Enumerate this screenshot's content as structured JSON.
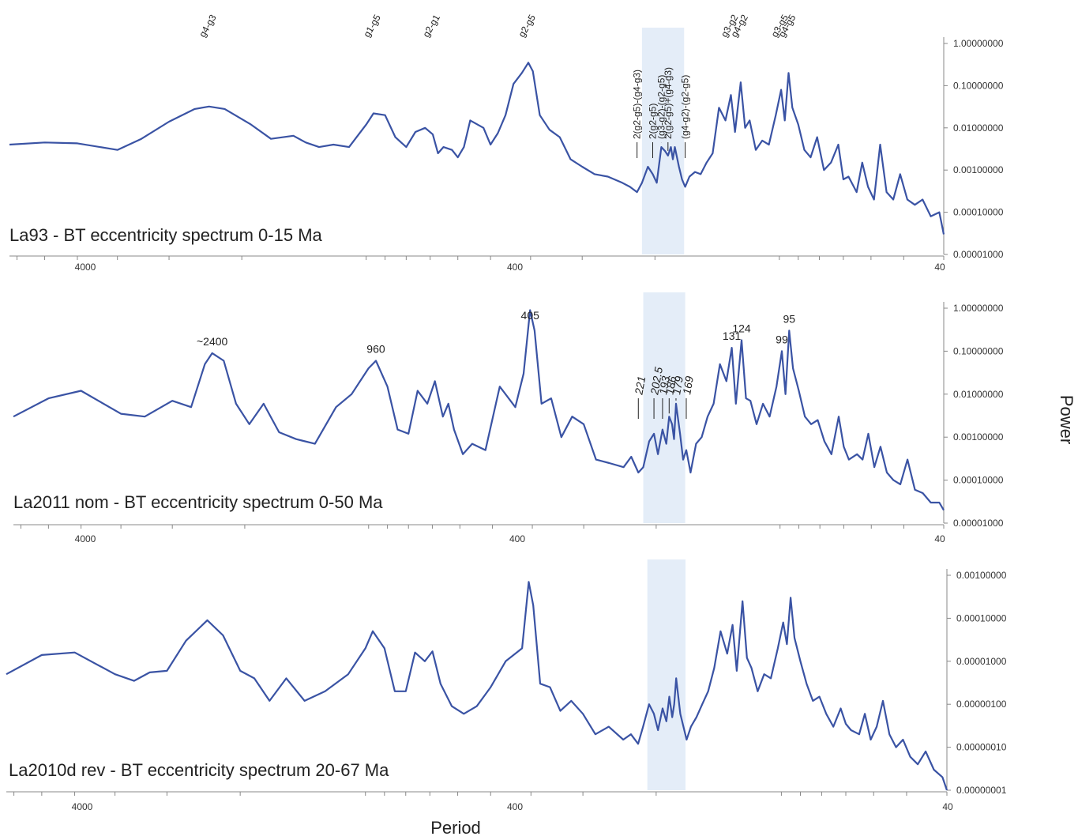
{
  "chart_data": [
    {
      "type": "line",
      "title": "La93 - BT eccentricity spectrum 0-15 Ma",
      "xlabel": "",
      "ylabel": "",
      "x_scale": "log-reversed",
      "xlim": [
        7300,
        40
      ],
      "x_ticks": [
        "4000",
        "400",
        "40"
      ],
      "y_scale": "log",
      "ylim": [
        1e-05,
        1.0
      ],
      "y_ticks": [
        "1.00000000",
        "0.10000000",
        "0.01000000",
        "0.00100000",
        "0.00010000",
        "0.00001000"
      ],
      "highlight_band": [
        215,
        170
      ],
      "grid": false,
      "series": [
        {
          "color": "#3a53a4",
          "x": [
            7300,
            6000,
            5000,
            4000,
            3500,
            3000,
            2600,
            2400,
            2200,
            1900,
            1700,
            1500,
            1400,
            1300,
            1200,
            1100,
            1000,
            960,
            900,
            850,
            800,
            760,
            720,
            690,
            670,
            650,
            620,
            600,
            580,
            560,
            520,
            500,
            480,
            460,
            440,
            420,
            405,
            395,
            380,
            360,
            340,
            320,
            300,
            280,
            260,
            240,
            230,
            221,
            215,
            208,
            202.5,
            198,
            193,
            189,
            186,
            183,
            181,
            179,
            175,
            172,
            169,
            165,
            160,
            155,
            150,
            145,
            140,
            135,
            131,
            128,
            124,
            121,
            118,
            114,
            110,
            106,
            102,
            99,
            97,
            95,
            93,
            90,
            87,
            84,
            81,
            78,
            75,
            72,
            70,
            68,
            65,
            63,
            61,
            59,
            57,
            55,
            53,
            51,
            49,
            47,
            45,
            43,
            41,
            40
          ],
          "y": [
            0.004,
            0.0045,
            0.0043,
            0.003,
            0.0055,
            0.014,
            0.028,
            0.032,
            0.028,
            0.012,
            0.0055,
            0.0065,
            0.0045,
            0.0035,
            0.004,
            0.0035,
            0.012,
            0.022,
            0.02,
            0.006,
            0.0035,
            0.008,
            0.01,
            0.007,
            0.0025,
            0.0035,
            0.003,
            0.002,
            0.0035,
            0.015,
            0.01,
            0.004,
            0.0075,
            0.02,
            0.11,
            0.2,
            0.35,
            0.22,
            0.02,
            0.009,
            0.006,
            0.0018,
            0.0012,
            0.0008,
            0.0007,
            0.0005,
            0.0004,
            0.0003,
            0.0005,
            0.0012,
            0.0008,
            0.0005,
            0.0035,
            0.0028,
            0.0022,
            0.0035,
            0.0018,
            0.0035,
            0.0012,
            0.0006,
            0.0004,
            0.0007,
            0.0009,
            0.0008,
            0.0015,
            0.0025,
            0.03,
            0.015,
            0.06,
            0.008,
            0.12,
            0.01,
            0.015,
            0.003,
            0.005,
            0.004,
            0.02,
            0.08,
            0.015,
            0.2,
            0.03,
            0.012,
            0.003,
            0.002,
            0.006,
            0.001,
            0.0015,
            0.004,
            0.0006,
            0.0007,
            0.0003,
            0.0015,
            0.0004,
            0.0002,
            0.004,
            0.0003,
            0.0002,
            0.0008,
            0.0002,
            0.00015,
            0.0002,
            8e-05,
            0.0001,
            3e-05
          ]
        }
      ],
      "annotations": [
        {
          "text": "2(g2-g5)-(g4-g3)",
          "x": 221
        },
        {
          "text": "2(g2-g5)",
          "x": 202.5
        },
        {
          "text": "(g3-g2)-(g2-g5)",
          "x": 193
        },
        {
          "text": "2(g2-g5)+(g4-g3)",
          "x": 186
        },
        {
          "text": "(g4-g2)-(g2-g5)",
          "x": 169
        }
      ],
      "top_labels": [
        {
          "text": "g4-g3",
          "x": 2400
        },
        {
          "text": "g1-g5",
          "x": 960
        },
        {
          "text": "g2-g1",
          "x": 690
        },
        {
          "text": "g2-g5",
          "x": 405
        },
        {
          "text": "g3-g2",
          "x": 131
        },
        {
          "text": "g4-g2",
          "x": 124
        },
        {
          "text": "g3-g5",
          "x": 99
        },
        {
          "text": "g4-g5",
          "x": 95
        }
      ]
    },
    {
      "type": "line",
      "title": "La2011 nom - BT eccentricity spectrum 0-50 Ma",
      "xlabel": "",
      "ylabel": "",
      "x_scale": "log-reversed",
      "xlim": [
        7300,
        40
      ],
      "x_ticks": [
        "4000",
        "400",
        "40"
      ],
      "y_scale": "log",
      "ylim": [
        1e-05,
        1.0
      ],
      "y_ticks": [
        "1.00000000",
        "0.10000000",
        "0.01000000",
        "0.00100000",
        "0.00010000",
        "0.00001000"
      ],
      "highlight_band": [
        215,
        170
      ],
      "grid": false,
      "series": [
        {
          "color": "#3a53a4",
          "x": [
            7300,
            6000,
            5000,
            4000,
            3500,
            3000,
            2700,
            2500,
            2400,
            2250,
            2100,
            1950,
            1800,
            1650,
            1500,
            1350,
            1200,
            1100,
            1000,
            960,
            900,
            850,
            800,
            760,
            720,
            690,
            660,
            640,
            620,
            590,
            560,
            520,
            480,
            440,
            420,
            405,
            395,
            380,
            360,
            340,
            320,
            300,
            280,
            260,
            240,
            230,
            221,
            215,
            208,
            202.5,
            198,
            193,
            189,
            186,
            183,
            181,
            179,
            175,
            172,
            169,
            165,
            160,
            155,
            150,
            145,
            140,
            135,
            131,
            128,
            124,
            121,
            118,
            114,
            110,
            106,
            102,
            99,
            97,
            95,
            93,
            90,
            87,
            84,
            81,
            78,
            75,
            72,
            70,
            68,
            65,
            63,
            61,
            59,
            57,
            55,
            53,
            51,
            49,
            47,
            45,
            43,
            41,
            40
          ],
          "y": [
            0.003,
            0.008,
            0.012,
            0.0035,
            0.003,
            0.007,
            0.005,
            0.05,
            0.09,
            0.06,
            0.006,
            0.002,
            0.006,
            0.0013,
            0.0009,
            0.0007,
            0.005,
            0.01,
            0.04,
            0.06,
            0.015,
            0.0015,
            0.0012,
            0.012,
            0.006,
            0.02,
            0.003,
            0.006,
            0.0015,
            0.0004,
            0.0007,
            0.0005,
            0.015,
            0.005,
            0.03,
            0.9,
            0.3,
            0.006,
            0.008,
            0.001,
            0.003,
            0.002,
            0.0003,
            0.00025,
            0.0002,
            0.00035,
            0.00015,
            0.0002,
            0.0008,
            0.0012,
            0.0004,
            0.0015,
            0.0007,
            0.003,
            0.002,
            0.0009,
            0.006,
            0.0012,
            0.0003,
            0.0005,
            0.00015,
            0.0007,
            0.001,
            0.003,
            0.006,
            0.05,
            0.02,
            0.12,
            0.006,
            0.18,
            0.008,
            0.007,
            0.002,
            0.006,
            0.003,
            0.015,
            0.1,
            0.01,
            0.3,
            0.04,
            0.012,
            0.003,
            0.002,
            0.0025,
            0.0008,
            0.0004,
            0.003,
            0.0006,
            0.0003,
            0.0004,
            0.0003,
            0.0012,
            0.0002,
            0.0006,
            0.00015,
            0.0001,
            8e-05,
            0.0003,
            6e-05,
            5e-05,
            3e-05,
            3e-05,
            2e-05
          ]
        }
      ],
      "peak_labels": [
        {
          "text": "~2400",
          "x": 2400,
          "italic": false
        },
        {
          "text": "960",
          "x": 960,
          "italic": false
        },
        {
          "text": "405",
          "x": 405,
          "italic": false
        },
        {
          "text": "221",
          "x": 221,
          "italic": true
        },
        {
          "text": "202.5",
          "x": 202.5,
          "italic": true
        },
        {
          "text": "193",
          "x": 193,
          "italic": true
        },
        {
          "text": "186",
          "x": 186,
          "italic": true
        },
        {
          "text": "179",
          "x": 179,
          "italic": true
        },
        {
          "text": "169",
          "x": 169,
          "italic": true
        },
        {
          "text": "131",
          "x": 131,
          "italic": false
        },
        {
          "text": "124",
          "x": 124,
          "italic": false
        },
        {
          "text": "99",
          "x": 99,
          "italic": false
        },
        {
          "text": "95",
          "x": 95,
          "italic": false
        }
      ]
    },
    {
      "type": "line",
      "title": "La2010d rev - BT eccentricity spectrum 20-67 Ma",
      "xlabel": "Period",
      "ylabel": "Power",
      "x_scale": "log-reversed",
      "xlim": [
        7300,
        40
      ],
      "x_ticks": [
        "4000",
        "400",
        "40"
      ],
      "y_scale": "log",
      "ylim": [
        1e-08,
        0.001
      ],
      "y_ticks": [
        "0.00100000",
        "0.00010000",
        "0.00001000",
        "0.00000100",
        "0.00000010",
        "0.00000001"
      ],
      "highlight_band": [
        210,
        170
      ],
      "grid": false,
      "series": [
        {
          "color": "#3a53a4",
          "x": [
            7300,
            6000,
            5000,
            4000,
            3600,
            3300,
            3000,
            2700,
            2400,
            2200,
            2000,
            1850,
            1700,
            1550,
            1400,
            1250,
            1100,
            1000,
            960,
            900,
            850,
            800,
            760,
            720,
            690,
            660,
            620,
            580,
            540,
            500,
            460,
            420,
            405,
            395,
            380,
            360,
            340,
            320,
            300,
            280,
            260,
            240,
            230,
            221,
            215,
            208,
            202.5,
            198,
            193,
            189,
            186,
            183,
            181,
            179,
            175,
            172,
            169,
            165,
            160,
            155,
            150,
            145,
            140,
            135,
            131,
            128,
            124,
            121,
            118,
            114,
            110,
            106,
            102,
            99,
            97,
            95,
            93,
            90,
            87,
            84,
            81,
            78,
            75,
            72,
            70,
            68,
            65,
            63,
            61,
            59,
            57,
            55,
            53,
            51,
            49,
            47,
            45,
            43,
            41,
            40
          ],
          "y": [
            5e-06,
            1.4e-05,
            1.6e-05,
            5e-06,
            3.5e-06,
            5.5e-06,
            6e-06,
            3e-05,
            9e-05,
            4e-05,
            6e-06,
            4e-06,
            1.2e-06,
            4e-06,
            1.2e-06,
            2e-06,
            5e-06,
            2e-05,
            5e-05,
            2e-05,
            2e-06,
            2e-06,
            1.6e-05,
            1e-05,
            1.7e-05,
            3e-06,
            9e-07,
            6e-07,
            9e-07,
            2.5e-06,
            1e-05,
            2e-05,
            0.0007,
            0.0002,
            3e-06,
            2.5e-06,
            7e-07,
            1.2e-06,
            6e-07,
            2e-07,
            3e-07,
            1.5e-07,
            2e-07,
            1.2e-07,
            3e-07,
            1e-06,
            6e-07,
            2.5e-07,
            8e-07,
            4e-07,
            1.5e-06,
            5e-07,
            1e-06,
            4e-06,
            6e-07,
            3e-07,
            1.5e-07,
            3e-07,
            5e-07,
            1e-06,
            2e-06,
            7e-06,
            5e-05,
            1.5e-05,
            7e-05,
            6e-06,
            0.00025,
            1.2e-05,
            7e-06,
            2e-06,
            5e-06,
            4e-06,
            2e-05,
            8e-05,
            2.5e-05,
            0.0003,
            3.5e-05,
            1e-05,
            3e-06,
            1.2e-06,
            1.5e-06,
            6e-07,
            3e-07,
            8e-07,
            3.5e-07,
            2.5e-07,
            2e-07,
            6e-07,
            1.5e-07,
            3e-07,
            1.2e-06,
            2e-07,
            1e-07,
            1.5e-07,
            6e-08,
            4e-08,
            8e-08,
            3e-08,
            2e-08,
            1e-08
          ]
        }
      ]
    }
  ],
  "colors": {
    "line": "#3a53a4",
    "band": "#e4edf8",
    "axis": "#888888"
  }
}
